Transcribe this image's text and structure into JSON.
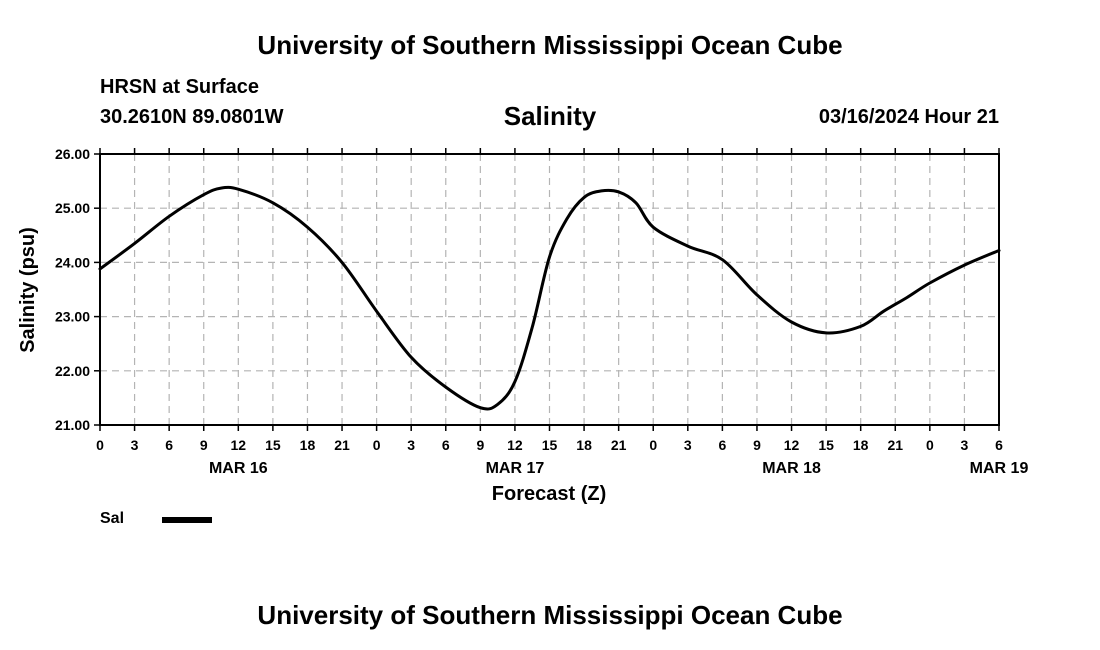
{
  "header": {
    "title_top": "University of Southern Mississippi Ocean Cube",
    "station": "HRSN at Surface",
    "coords": "30.2610N  89.0801W",
    "datetime": "03/16/2024 Hour 21",
    "title_bottom": "University of Southern Mississippi Ocean Cube"
  },
  "legend": {
    "label": "Sal",
    "color": "#000000"
  },
  "chart_data": {
    "type": "line",
    "title": "Salinity",
    "xlabel": "Forecast (Z)",
    "ylabel": "Salinity (psu)",
    "ylim": [
      21.0,
      26.0
    ],
    "yticks": [
      "21.00",
      "22.00",
      "23.00",
      "24.00",
      "25.00",
      "26.00"
    ],
    "xlim_hours": [
      0,
      78
    ],
    "xticks": [
      "0",
      "3",
      "6",
      "9",
      "12",
      "15",
      "18",
      "21",
      "0",
      "3",
      "6",
      "9",
      "12",
      "15",
      "18",
      "21",
      "0",
      "3",
      "6",
      "9",
      "12",
      "15",
      "18",
      "21",
      "0",
      "3",
      "6"
    ],
    "dates": [
      {
        "label": "MAR 16",
        "hour": 12
      },
      {
        "label": "MAR 17",
        "hour": 36
      },
      {
        "label": "MAR 18",
        "hour": 60
      },
      {
        "label": "MAR 19",
        "hour": 78
      }
    ],
    "grid": true,
    "series": [
      {
        "name": "Sal",
        "color": "#000000",
        "x": [
          0,
          3,
          6,
          9,
          10.5,
          12,
          15,
          18,
          21,
          24,
          27,
          30,
          33,
          34.5,
          36,
          37.5,
          39,
          40.5,
          42,
          43.5,
          45,
          46.5,
          48,
          51,
          54,
          57,
          60,
          63,
          66,
          68,
          70,
          72,
          75,
          78
        ],
        "y": [
          23.88,
          24.35,
          24.85,
          25.25,
          25.37,
          25.35,
          25.1,
          24.65,
          24.0,
          23.1,
          22.25,
          21.7,
          21.32,
          21.38,
          21.8,
          22.8,
          24.1,
          24.8,
          25.2,
          25.32,
          25.3,
          25.1,
          24.65,
          24.3,
          24.05,
          23.4,
          22.9,
          22.7,
          22.82,
          23.1,
          23.35,
          23.62,
          23.95,
          24.22
        ]
      }
    ]
  }
}
